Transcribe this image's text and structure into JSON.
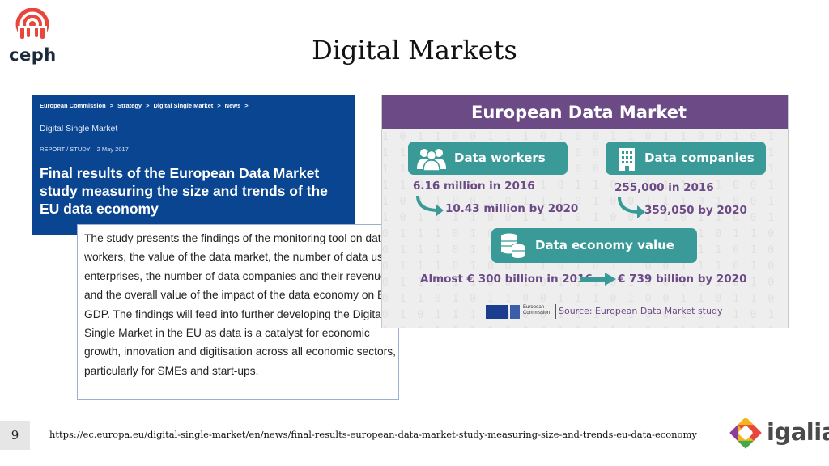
{
  "brand": {
    "logo_text": "ceph",
    "footer_logo_text": "igalia"
  },
  "slide": {
    "title": "Digital Markets",
    "page_number": "9",
    "url": "https://ec.europa.eu/digital-single-market/en/news/final-results-european-data-market-study-measuring-size-and-trends-eu-data-economy"
  },
  "article": {
    "breadcrumb": [
      "European Commission",
      "Strategy",
      "Digital Single Market",
      "News"
    ],
    "breadcrumb_separator": ">",
    "section": "Digital Single Market",
    "meta_type": "REPORT / STUDY",
    "meta_date": "2 May 2017",
    "headline": "Final results of the European Data Market study measuring the size and trends of the EU data economy",
    "summary": "The study presents the findings of the monitoring tool on data workers, the value of the data market, the number of data user enterprises, the number of data companies and their revenues, and the overall value of the impact of the data economy on EU GDP. The findings will feed into further developing the Digital Single Market in the EU as data is a catalyst for economic growth, innovation and digitisation across all economic sectors, particularly for SMEs and start-ups."
  },
  "infographic": {
    "title": "European Data Market",
    "data_workers": {
      "label": "Data workers",
      "stat_2016": "6.16 million in 2016",
      "stat_2020": "10.43 million by 2020"
    },
    "data_companies": {
      "label": "Data companies",
      "stat_2016": "255,000 in 2016",
      "stat_2020": "359,050 by 2020"
    },
    "data_economy": {
      "label": "Data economy value",
      "stat_2016": "Almost € 300 billion in 2016",
      "stat_2020": "€ 739 billion by 2020"
    },
    "commission_label": "European Commission",
    "source": "Source: European Data Market study",
    "colors": {
      "header": "#6c4a86",
      "pill": "#3a9a98",
      "stat_text": "#6c4a86",
      "banner": "#0a4592"
    }
  }
}
